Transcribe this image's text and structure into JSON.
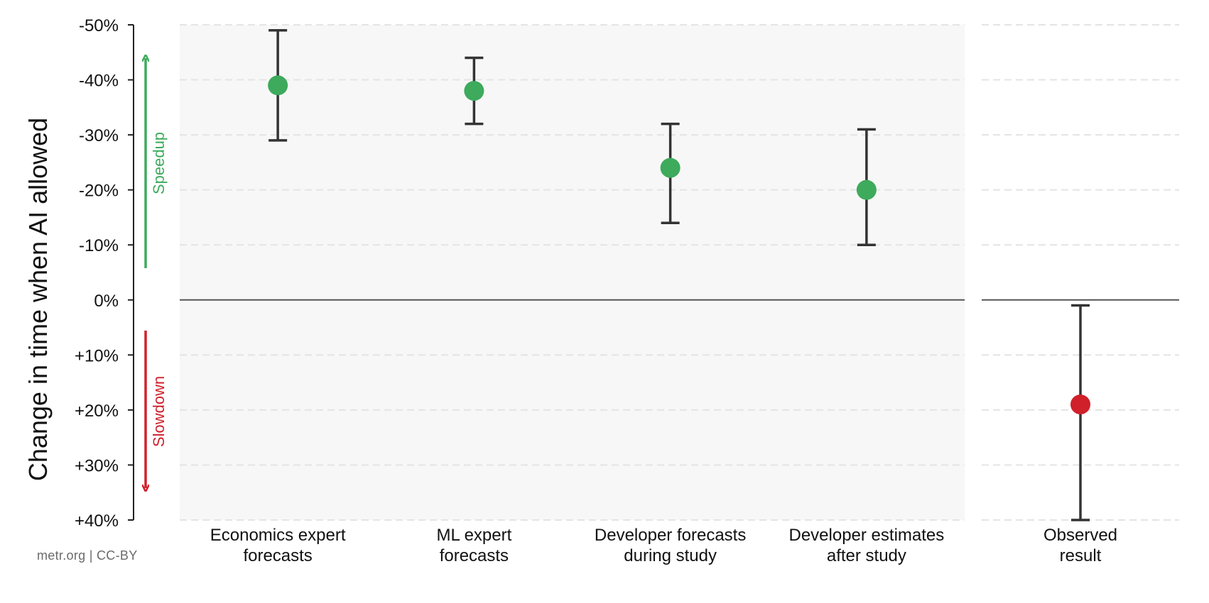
{
  "chart_data": {
    "type": "errorbar",
    "ylabel": "Change in time when AI allowed",
    "y_axis_inverted": true,
    "ylim": [
      -50,
      40
    ],
    "yticks": [
      -50,
      -40,
      -30,
      -20,
      -10,
      0,
      10,
      20,
      30,
      40
    ],
    "ytick_labels": [
      "-50%",
      "-40%",
      "-30%",
      "-20%",
      "-10%",
      "0%",
      "+10%",
      "+20%",
      "+30%",
      "+40%"
    ],
    "grid": true,
    "panels": [
      {
        "name": "forecasts",
        "shaded": true,
        "points": [
          {
            "label_lines": [
              "Economics expert",
              "forecasts"
            ],
            "value": -39,
            "low": -49,
            "high": -29,
            "color": "#3daa5c"
          },
          {
            "label_lines": [
              "ML expert",
              "forecasts"
            ],
            "value": -38,
            "low": -44,
            "high": -32,
            "color": "#3daa5c"
          },
          {
            "label_lines": [
              "Developer forecasts",
              "during study"
            ],
            "value": -24,
            "low": -32,
            "high": -14,
            "color": "#3daa5c"
          },
          {
            "label_lines": [
              "Developer estimates",
              "after study"
            ],
            "value": -20,
            "low": -31,
            "high": -10,
            "color": "#3daa5c"
          }
        ]
      },
      {
        "name": "observed",
        "shaded": false,
        "points": [
          {
            "label_lines": [
              "Observed",
              "result"
            ],
            "value": 19,
            "low": 1,
            "high": 40,
            "color": "#d0202a"
          }
        ]
      }
    ],
    "annotations": {
      "speedup": {
        "text": "Speedup",
        "color": "#3daa5c",
        "direction": "up"
      },
      "slowdown": {
        "text": "Slowdown",
        "color": "#d0202a",
        "direction": "down"
      }
    }
  },
  "footer": {
    "credit": "metr.org  |  CC-BY"
  }
}
